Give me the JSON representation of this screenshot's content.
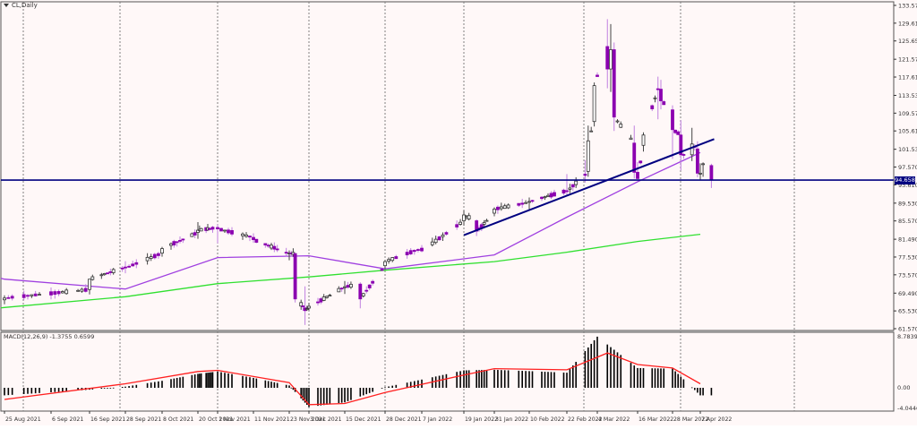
{
  "window": {
    "symbol_title": "CL,Daily",
    "macd_label": "MACD(12,26,9) -1.3755 0.6599",
    "current_price_tag": "94.658"
  },
  "colors": {
    "background": "#fff8f8",
    "grid": "#808080",
    "bull_candle": "#333333",
    "bull_fill": "#ffffff",
    "bear_candle": "#8b00b0",
    "bear_wick_light": "#c080e0",
    "ma50": "#a040e0",
    "ma200": "#30e030",
    "horizontal_line": "#000080",
    "trendline": "#000080",
    "macd_hist": "#000000",
    "macd_signal": "#ff2020",
    "price_tag_bg": "#000080"
  },
  "chart_data": [
    {
      "type": "candlestick",
      "title": "CL,Daily",
      "xlabel": "",
      "ylabel": "",
      "ylim": [
        61.57,
        133.57
      ],
      "y_ticks": [
        "133.570",
        "129.610",
        "125.650",
        "121.570",
        "117.610",
        "113.530",
        "109.570",
        "105.610",
        "101.530",
        "97.570",
        "93.610",
        "89.530",
        "85.570",
        "81.490",
        "77.530",
        "73.570",
        "69.490",
        "65.530",
        "61.570"
      ],
      "x_ticks": [
        "25 Aug 2021",
        "6 Sep 2021",
        "16 Sep 2021",
        "28 Sep 2021",
        "8 Oct 2021",
        "20 Oct 2021",
        "1 Nov 2021",
        "11 Nov 2021",
        "23 Nov 2021",
        "3 Dec 2021",
        "15 Dec 2021",
        "28 Dec 2021",
        "7 Jan 2022",
        "19 Jan 2022",
        "31 Jan 2022",
        "10 Feb 2022",
        "22 Feb 2022",
        "4 Mar 2022",
        "16 Mar 2022",
        "28 Mar 2022",
        "7 Apr 2022"
      ],
      "grid": "vertical dotted",
      "horizontal_line": 94.658,
      "trendline": {
        "from": {
          "date": "19 Jan 2022",
          "price": 82.4
        },
        "to": {
          "date": "12 Apr 2022",
          "price": 103.8
        }
      },
      "series": [
        {
          "name": "SMA50 (purple)",
          "values_sampled": [
            [
              "25 Aug 2021",
              72.6
            ],
            [
              "28 Sep 2021",
              70.4
            ],
            [
              "1 Nov 2021",
              77.4
            ],
            [
              "3 Dec 2021",
              77.8
            ],
            [
              "28 Dec 2021",
              74.9
            ],
            [
              "31 Jan 2022",
              78.0
            ],
            [
              "22 Feb 2022",
              86.4
            ],
            [
              "16 Mar 2022",
              94.3
            ],
            [
              "7 Apr 2022",
              100.8
            ]
          ]
        },
        {
          "name": "SMA200 (green)",
          "values_sampled": [
            [
              "25 Aug 2021",
              66.3
            ],
            [
              "28 Sep 2021",
              68.7
            ],
            [
              "1 Nov 2021",
              71.6
            ],
            [
              "3 Dec 2021",
              73.1
            ],
            [
              "28 Dec 2021",
              74.6
            ],
            [
              "31 Jan 2022",
              76.5
            ],
            [
              "22 Feb 2022",
              78.6
            ],
            [
              "16 Mar 2022",
              81.0
            ],
            [
              "7 Apr 2022",
              82.6
            ]
          ]
        }
      ],
      "candles_ohlc_sampled": [
        {
          "date": "25 Aug 2021",
          "o": 68.0,
          "h": 69.0,
          "l": 67.0,
          "c": 68.4
        },
        {
          "date": "16 Sep 2021",
          "o": 70.3,
          "h": 72.6,
          "l": 69.2,
          "c": 72.6
        },
        {
          "date": "28 Sep 2021",
          "o": 75.3,
          "h": 76.6,
          "l": 73.9,
          "c": 75.1
        },
        {
          "date": "8 Oct 2021",
          "o": 78.4,
          "h": 79.8,
          "l": 77.6,
          "c": 79.4
        },
        {
          "date": "20 Oct 2021",
          "o": 83.0,
          "h": 85.3,
          "l": 81.6,
          "c": 83.5
        },
        {
          "date": "1 Nov 2021",
          "o": 84.1,
          "h": 84.8,
          "l": 80.6,
          "c": 83.8
        },
        {
          "date": "11 Nov 2021",
          "o": 81.9,
          "h": 82.8,
          "l": 80.7,
          "c": 81.4
        },
        {
          "date": "23 Nov 2021",
          "o": 78.3,
          "h": 79.0,
          "l": 76.8,
          "c": 78.4
        },
        {
          "date": "26 Nov 2021",
          "o": 78.3,
          "h": 78.3,
          "l": 67.4,
          "c": 68.2
        },
        {
          "date": "1 Dec 2021",
          "o": 66.2,
          "h": 71.0,
          "l": 62.4,
          "c": 65.6
        },
        {
          "date": "15 Dec 2021",
          "o": 70.9,
          "h": 72.2,
          "l": 69.3,
          "c": 70.9
        },
        {
          "date": "20 Dec 2021",
          "o": 71.5,
          "h": 71.9,
          "l": 66.1,
          "c": 68.2
        },
        {
          "date": "28 Dec 2021",
          "o": 75.6,
          "h": 76.9,
          "l": 74.7,
          "c": 76.5
        },
        {
          "date": "7 Jan 2022",
          "o": 79.5,
          "h": 80.2,
          "l": 78.6,
          "c": 78.9
        },
        {
          "date": "19 Jan 2022",
          "o": 85.6,
          "h": 87.9,
          "l": 84.5,
          "c": 86.9
        },
        {
          "date": "24 Jan 2022",
          "o": 85.6,
          "h": 85.9,
          "l": 82.2,
          "c": 83.3
        },
        {
          "date": "31 Jan 2022",
          "o": 87.3,
          "h": 88.6,
          "l": 86.6,
          "c": 88.2
        },
        {
          "date": "10 Feb 2022",
          "o": 89.7,
          "h": 90.8,
          "l": 88.2,
          "c": 89.9
        },
        {
          "date": "22 Feb 2022",
          "o": 92.3,
          "h": 96.0,
          "l": 91.3,
          "c": 92.1
        },
        {
          "date": "28 Feb 2022",
          "o": 96.0,
          "h": 99.1,
          "l": 94.1,
          "c": 95.7
        },
        {
          "date": "1 Mar 2022",
          "o": 96.6,
          "h": 106.8,
          "l": 95.4,
          "c": 103.4
        },
        {
          "date": "3 Mar 2022",
          "o": 107.7,
          "h": 116.4,
          "l": 106.6,
          "c": 115.7
        },
        {
          "date": "7 Mar 2022",
          "o": 124.4,
          "h": 130.5,
          "l": 115.1,
          "c": 119.4
        },
        {
          "date": "8 Mar 2022",
          "o": 119.4,
          "h": 129.4,
          "l": 114.3,
          "c": 123.7
        },
        {
          "date": "9 Mar 2022",
          "o": 123.7,
          "h": 125.3,
          "l": 105.6,
          "c": 108.7
        },
        {
          "date": "15 Mar 2022",
          "o": 102.9,
          "h": 106.8,
          "l": 95.0,
          "c": 96.4
        },
        {
          "date": "16 Mar 2022",
          "o": 96.4,
          "h": 98.7,
          "l": 95.0,
          "c": 95.0
        },
        {
          "date": "18 Mar 2022",
          "o": 102.4,
          "h": 105.3,
          "l": 101.0,
          "c": 104.7
        },
        {
          "date": "23 Mar 2022",
          "o": 115.0,
          "h": 117.7,
          "l": 108.2,
          "c": 114.9
        },
        {
          "date": "24 Mar 2022",
          "o": 114.9,
          "h": 117.0,
          "l": 110.4,
          "c": 112.3
        },
        {
          "date": "28 Mar 2022",
          "o": 110.3,
          "h": 111.3,
          "l": 99.4,
          "c": 105.9
        },
        {
          "date": "31 Mar 2022",
          "o": 104.7,
          "h": 108.0,
          "l": 96.8,
          "c": 100.3
        },
        {
          "date": "4 Apr 2022",
          "o": 100.3,
          "h": 106.3,
          "l": 98.9,
          "c": 102.7
        },
        {
          "date": "6 Apr 2022",
          "o": 101.6,
          "h": 103.3,
          "l": 95.3,
          "c": 96.2
        },
        {
          "date": "7 Apr 2022",
          "o": 96.0,
          "h": 98.4,
          "l": 94.6,
          "c": 96.2
        },
        {
          "date": "8 Apr 2022",
          "o": 98.3,
          "h": 98.6,
          "l": 95.4,
          "c": 98.3
        },
        {
          "date": "11 Apr 2022",
          "o": 97.9,
          "h": 98.3,
          "l": 92.9,
          "c": 94.658
        }
      ]
    },
    {
      "type": "bar",
      "title": "MACD(12,26,9) -1.3755 0.6599",
      "ylim": [
        -4.0446,
        8.7839
      ],
      "y_ticks": [
        "8.7839",
        "0.00",
        "-4.0446"
      ],
      "series": [
        {
          "name": "MACD histogram",
          "values_sampled": [
            [
              "25 Aug 2021",
              -1.3
            ],
            [
              "28 Sep 2021",
              0.2
            ],
            [
              "20 Oct 2021",
              2.4
            ],
            [
              "1 Nov 2021",
              2.8
            ],
            [
              "23 Nov 2021",
              0.4
            ],
            [
              "3 Dec 2021",
              -3.3
            ],
            [
              "15 Dec 2021",
              -2.5
            ],
            [
              "28 Dec 2021",
              0.1
            ],
            [
              "19 Jan 2022",
              3.0
            ],
            [
              "31 Jan 2022",
              3.1
            ],
            [
              "22 Feb 2022",
              2.6
            ],
            [
              "4 Mar 2022",
              8.8
            ],
            [
              "16 Mar 2022",
              3.4
            ],
            [
              "28 Mar 2022",
              3.3
            ],
            [
              "7 Apr 2022",
              -1.3
            ]
          ]
        },
        {
          "name": "Signal (red)",
          "values_sampled": [
            [
              "25 Aug 2021",
              -2.0
            ],
            [
              "28 Sep 2021",
              0.7
            ],
            [
              "20 Oct 2021",
              2.8
            ],
            [
              "1 Nov 2021",
              3.0
            ],
            [
              "23 Nov 2021",
              0.9
            ],
            [
              "3 Dec 2021",
              -2.9
            ],
            [
              "15 Dec 2021",
              -2.7
            ],
            [
              "28 Dec 2021",
              -0.8
            ],
            [
              "19 Jan 2022",
              2.2
            ],
            [
              "31 Jan 2022",
              3.3
            ],
            [
              "22 Feb 2022",
              3.1
            ],
            [
              "7 Mar 2022",
              6.0
            ],
            [
              "16 Mar 2022",
              4.0
            ],
            [
              "28 Mar 2022",
              3.4
            ],
            [
              "7 Apr 2022",
              0.7
            ]
          ]
        }
      ]
    }
  ]
}
